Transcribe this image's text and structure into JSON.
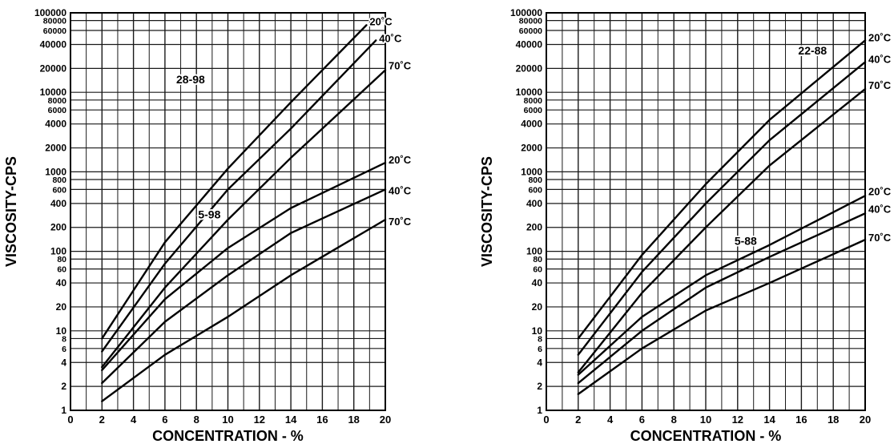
{
  "chart_data": [
    {
      "type": "line",
      "title": "",
      "xlabel": "CONCENTRATION - %",
      "ylabel": "VISCOSITY-CPS",
      "xlim": [
        0,
        20
      ],
      "ylim": [
        1,
        100000
      ],
      "yscale": "log",
      "grid": true,
      "xticks": [
        0,
        2,
        4,
        6,
        8,
        10,
        12,
        14,
        16,
        18,
        20
      ],
      "yticks": [
        1,
        2,
        4,
        6,
        8,
        10,
        20,
        40,
        60,
        80,
        100,
        200,
        400,
        600,
        800,
        1000,
        2000,
        4000,
        6000,
        8000,
        10000,
        20000,
        40000,
        60000,
        80000,
        100000
      ],
      "xtick_labels": [
        "0",
        "2",
        "4",
        "6",
        "8",
        "10",
        "12",
        "14",
        "16",
        "18",
        "20"
      ],
      "ytick_labels": [
        "1",
        "2",
        "4",
        "6",
        "8",
        "10",
        "20",
        "40",
        "60",
        "80",
        "100",
        "200",
        "400",
        "600",
        "800",
        "1000",
        "2000",
        "4000",
        "6000",
        "8000",
        "10000",
        "20000",
        "40000",
        "60000",
        "80000",
        "100000"
      ],
      "annotations": [
        "28-98",
        "5-98"
      ],
      "series": [
        {
          "name": "20˚C",
          "group": "28-98",
          "x": [
            2,
            6,
            10,
            14,
            18.8
          ],
          "y": [
            8,
            130,
            1100,
            7500,
            70000
          ]
        },
        {
          "name": "40˚C",
          "group": "28-98",
          "x": [
            2,
            6,
            10,
            14,
            19.4
          ],
          "y": [
            5.5,
            70,
            600,
            3500,
            45000
          ]
        },
        {
          "name": "70˚C",
          "group": "28-98",
          "x": [
            2,
            6,
            10,
            14,
            20
          ],
          "y": [
            3.5,
            35,
            250,
            1500,
            19000
          ]
        },
        {
          "name": "20˚C",
          "group": "5-98",
          "x": [
            2,
            6,
            10,
            14,
            20
          ],
          "y": [
            3.2,
            25,
            110,
            350,
            1300
          ]
        },
        {
          "name": "40˚C",
          "group": "5-98",
          "x": [
            2,
            6,
            10,
            14,
            20
          ],
          "y": [
            2.2,
            13,
            50,
            170,
            600
          ]
        },
        {
          "name": "70˚C",
          "group": "5-98",
          "x": [
            2,
            6,
            10,
            14,
            20
          ],
          "y": [
            1.3,
            5,
            15,
            50,
            250
          ]
        }
      ]
    },
    {
      "type": "line",
      "title": "",
      "xlabel": "CONCENTRATION - %",
      "ylabel": "VISCOSITY-CPS",
      "xlim": [
        0,
        20
      ],
      "ylim": [
        1,
        100000
      ],
      "yscale": "log",
      "grid": true,
      "xticks": [
        0,
        2,
        4,
        6,
        8,
        10,
        12,
        14,
        16,
        18,
        20
      ],
      "yticks": [
        1,
        2,
        4,
        6,
        8,
        10,
        20,
        40,
        60,
        80,
        100,
        200,
        400,
        600,
        800,
        1000,
        2000,
        4000,
        6000,
        8000,
        10000,
        20000,
        40000,
        60000,
        80000,
        100000
      ],
      "xtick_labels": [
        "0",
        "2",
        "4",
        "6",
        "8",
        "10",
        "12",
        "14",
        "16",
        "18",
        "20"
      ],
      "ytick_labels": [
        "1",
        "2",
        "4",
        "6",
        "8",
        "10",
        "20",
        "40",
        "60",
        "80",
        "100",
        "200",
        "400",
        "600",
        "800",
        "1000",
        "2000",
        "4000",
        "6000",
        "8000",
        "10000",
        "20000",
        "40000",
        "60000",
        "80000",
        "100000"
      ],
      "annotations": [
        "22-88",
        "5-88"
      ],
      "series": [
        {
          "name": "20˚C",
          "group": "22-88",
          "x": [
            2,
            6,
            10,
            14,
            20
          ],
          "y": [
            8,
            90,
            700,
            4500,
            45000
          ]
        },
        {
          "name": "40˚C",
          "group": "22-88",
          "x": [
            2,
            6,
            10,
            14,
            20
          ],
          "y": [
            5,
            55,
            400,
            2500,
            24000
          ]
        },
        {
          "name": "70˚C",
          "group": "22-88",
          "x": [
            2,
            6,
            10,
            14,
            20
          ],
          "y": [
            3,
            30,
            200,
            1200,
            11000
          ]
        },
        {
          "name": "20˚C",
          "group": "5-88",
          "x": [
            2,
            6,
            10,
            14,
            20
          ],
          "y": [
            2.8,
            15,
            50,
            120,
            500
          ]
        },
        {
          "name": "40˚C",
          "group": "5-88",
          "x": [
            2,
            6,
            10,
            14,
            20
          ],
          "y": [
            2.2,
            10,
            35,
            85,
            300
          ]
        },
        {
          "name": "70˚C",
          "group": "5-88",
          "x": [
            2,
            6,
            10,
            14,
            20
          ],
          "y": [
            1.6,
            6,
            18,
            40,
            140
          ]
        }
      ]
    }
  ],
  "style": {
    "ink": "#000000",
    "grid": "#1a1a1a",
    "background": "#ffffff"
  }
}
